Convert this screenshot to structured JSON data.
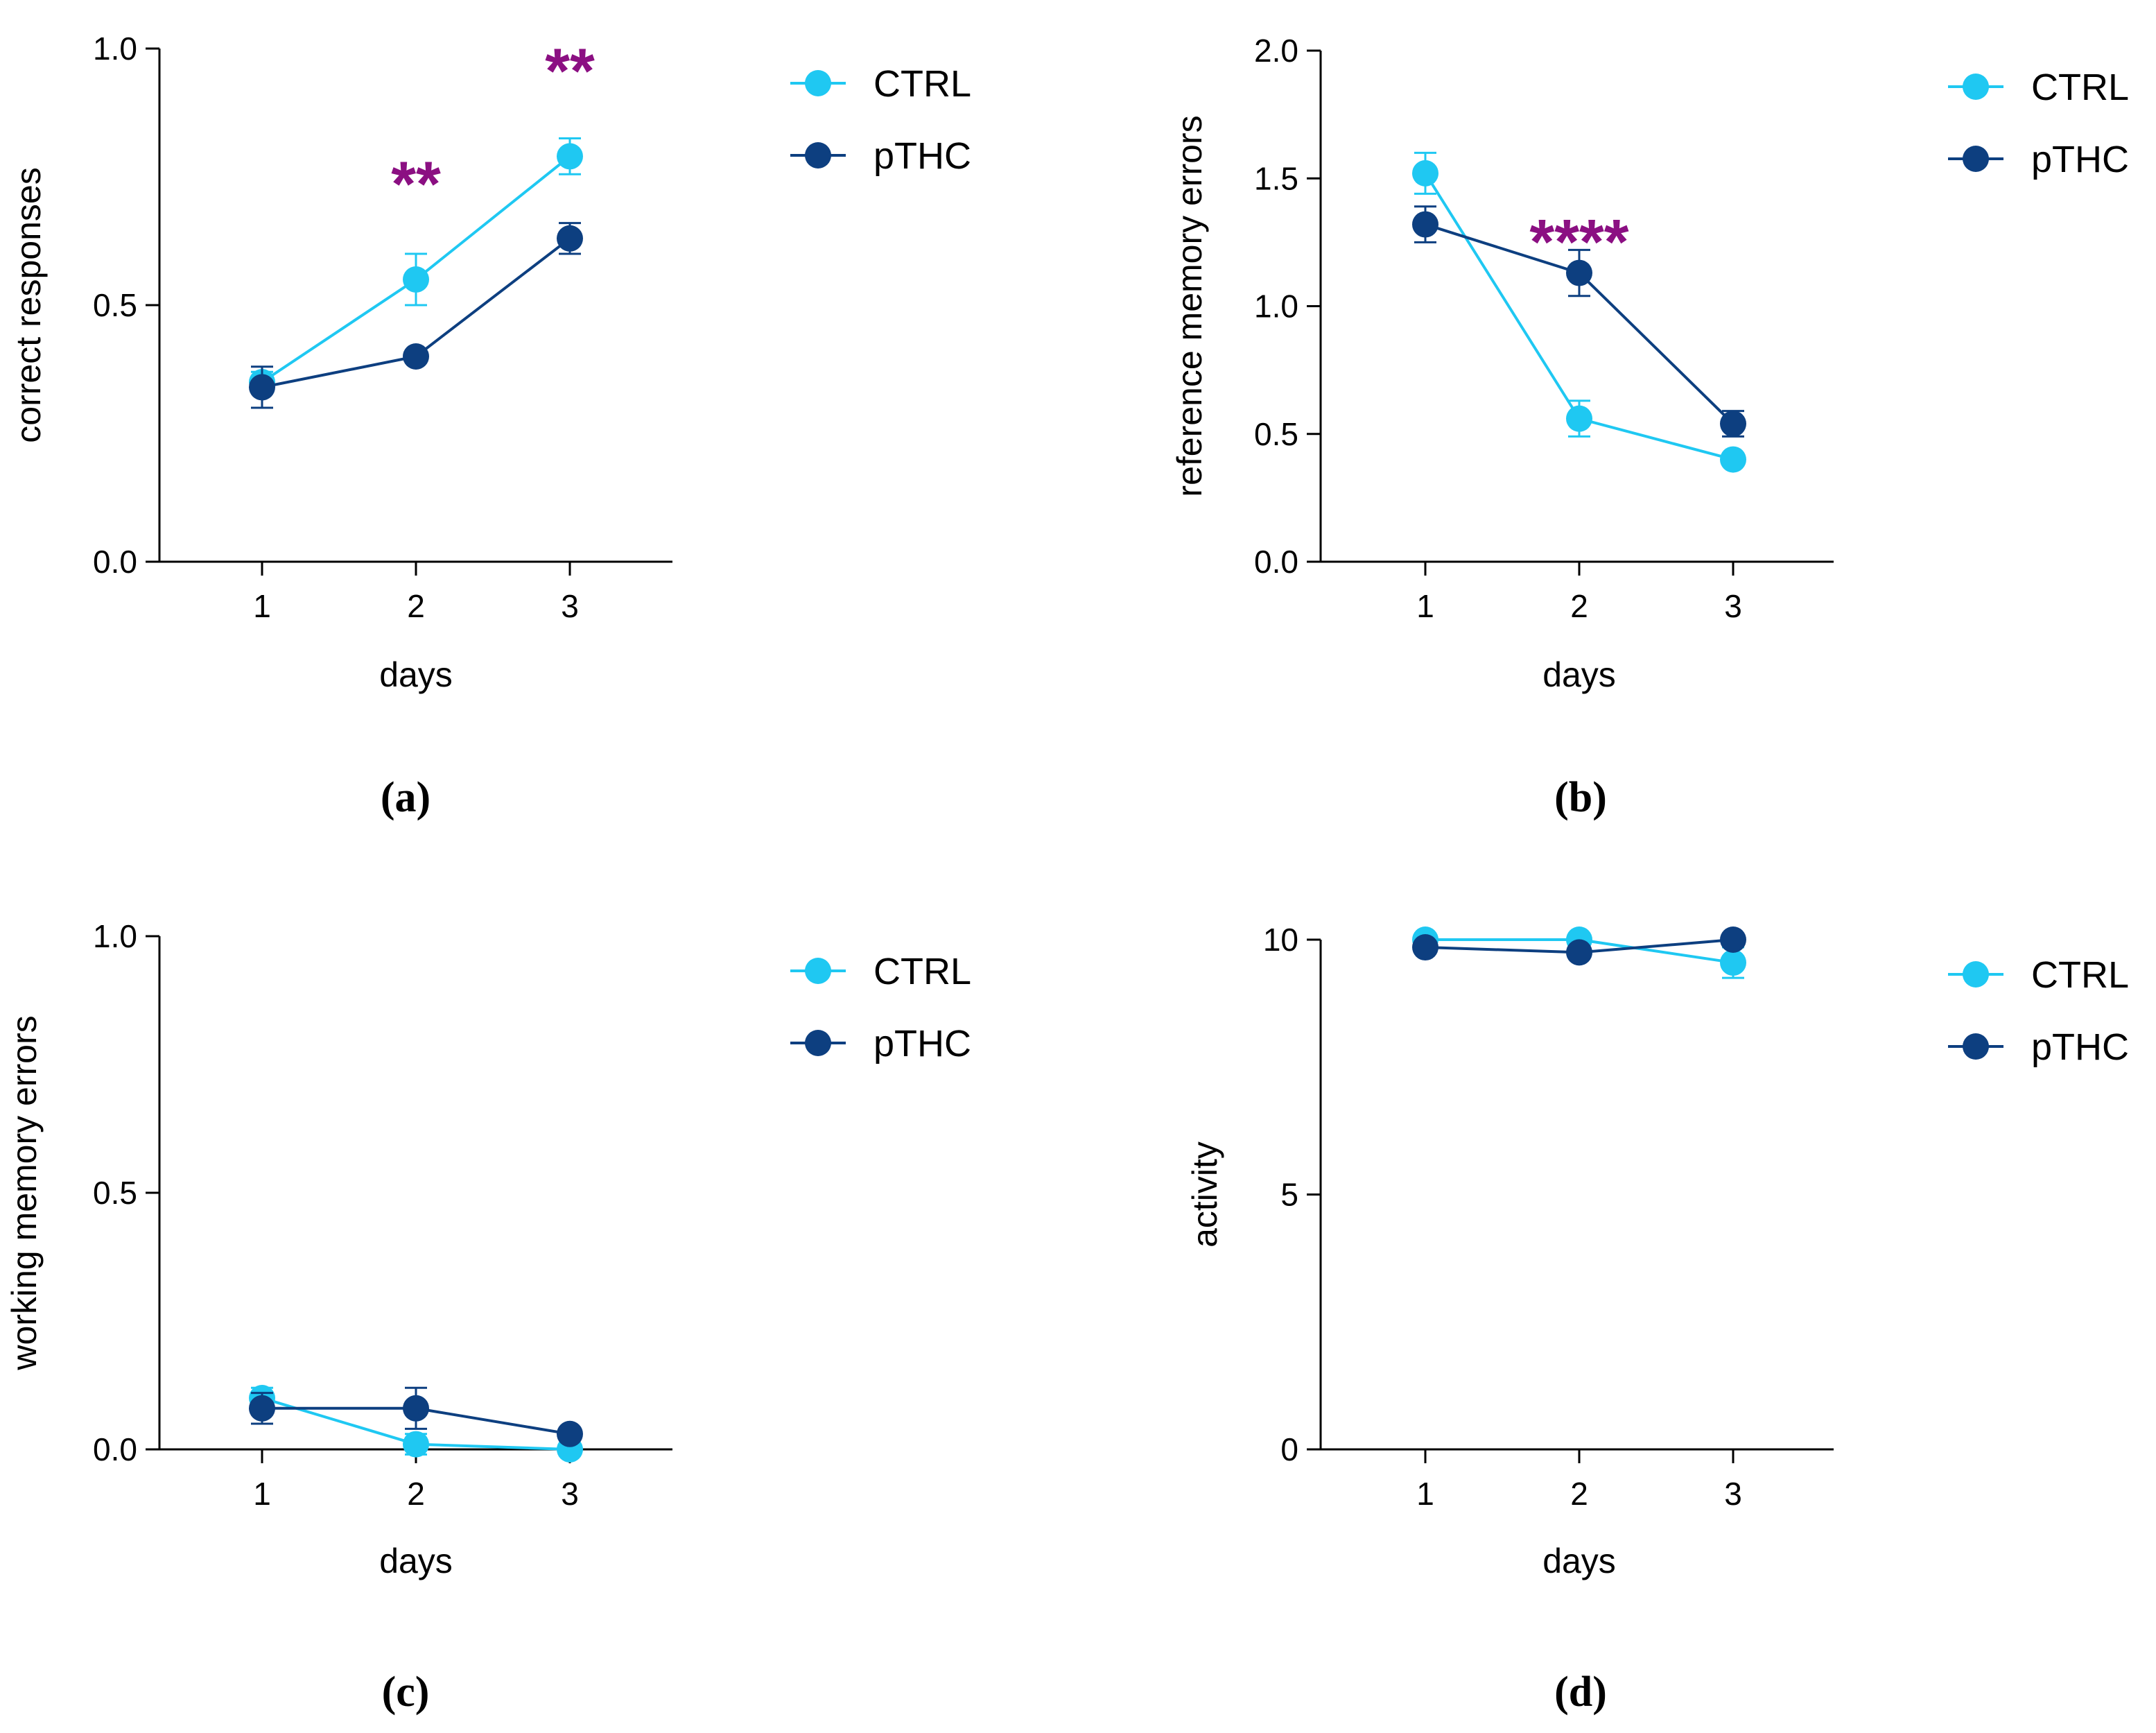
{
  "chart_data": [
    {
      "panel": "(a)",
      "type": "line",
      "xlabel": "days",
      "ylabel": "correct responses",
      "categories": [
        "1",
        "2",
        "3"
      ],
      "ylim": [
        0.0,
        1.0
      ],
      "yticks": [
        0.0,
        0.5,
        1.0
      ],
      "ytick_labels": [
        "0.0",
        "0.5",
        "1.0"
      ],
      "series": [
        {
          "name": "CTRL",
          "color": "#1fc8f2",
          "values": [
            0.35,
            0.55,
            0.79
          ],
          "errors": [
            0.02,
            0.05,
            0.035
          ]
        },
        {
          "name": "pTHC",
          "color": "#0d3f80",
          "values": [
            0.34,
            0.4,
            0.63
          ],
          "errors": [
            0.04,
            0.01,
            0.03
          ]
        }
      ],
      "annotations": [
        {
          "category": "2",
          "at": 0.75,
          "text": "**"
        },
        {
          "category": "3",
          "at": 0.97,
          "text": "**"
        }
      ],
      "legend_position": "top-right"
    },
    {
      "panel": "(b)",
      "type": "line",
      "xlabel": "days",
      "ylabel": "reference memory errors",
      "categories": [
        "1",
        "2",
        "3"
      ],
      "ylim": [
        0.0,
        2.0
      ],
      "yticks": [
        0.0,
        0.5,
        1.0,
        1.5,
        2.0
      ],
      "ytick_labels": [
        "0.0",
        "0.5",
        "1.0",
        "1.5",
        "2.0"
      ],
      "series": [
        {
          "name": "CTRL",
          "color": "#1fc8f2",
          "values": [
            1.52,
            0.56,
            0.4
          ],
          "errors": [
            0.08,
            0.07,
            0.02
          ]
        },
        {
          "name": "pTHC",
          "color": "#0d3f80",
          "values": [
            1.32,
            1.13,
            0.54
          ],
          "errors": [
            0.07,
            0.09,
            0.05
          ]
        }
      ],
      "annotations": [
        {
          "category": "2",
          "at": 1.28,
          "text": "****"
        }
      ],
      "legend_position": "top-right"
    },
    {
      "panel": "(c)",
      "type": "line",
      "xlabel": "days",
      "ylabel": "working memory errors",
      "categories": [
        "1",
        "2",
        "3"
      ],
      "ylim": [
        0.0,
        1.0
      ],
      "yticks": [
        0.0,
        0.5,
        1.0
      ],
      "ytick_labels": [
        "0.0",
        "0.5",
        "1.0"
      ],
      "series": [
        {
          "name": "CTRL",
          "color": "#1fc8f2",
          "values": [
            0.1,
            0.01,
            0.0
          ],
          "errors": [
            0.02,
            0.02,
            0.01
          ]
        },
        {
          "name": "pTHC",
          "color": "#0d3f80",
          "values": [
            0.08,
            0.08,
            0.03
          ],
          "errors": [
            0.03,
            0.04,
            0.01
          ]
        }
      ],
      "annotations": [],
      "legend_position": "top-right"
    },
    {
      "panel": "(d)",
      "type": "line",
      "xlabel": "days",
      "ylabel": "activity",
      "categories": [
        "1",
        "2",
        "3"
      ],
      "ylim": [
        0,
        10
      ],
      "yticks": [
        0,
        5,
        10
      ],
      "ytick_labels": [
        "0",
        "5",
        "10"
      ],
      "series": [
        {
          "name": "CTRL",
          "color": "#1fc8f2",
          "values": [
            10.0,
            10.0,
            9.55
          ],
          "errors": [
            0.05,
            0.05,
            0.3
          ]
        },
        {
          "name": "pTHC",
          "color": "#0d3f80",
          "values": [
            9.85,
            9.75,
            10.0
          ],
          "errors": [
            0.05,
            0.05,
            0.05
          ]
        }
      ],
      "annotations": [],
      "legend_position": "top-right"
    }
  ]
}
